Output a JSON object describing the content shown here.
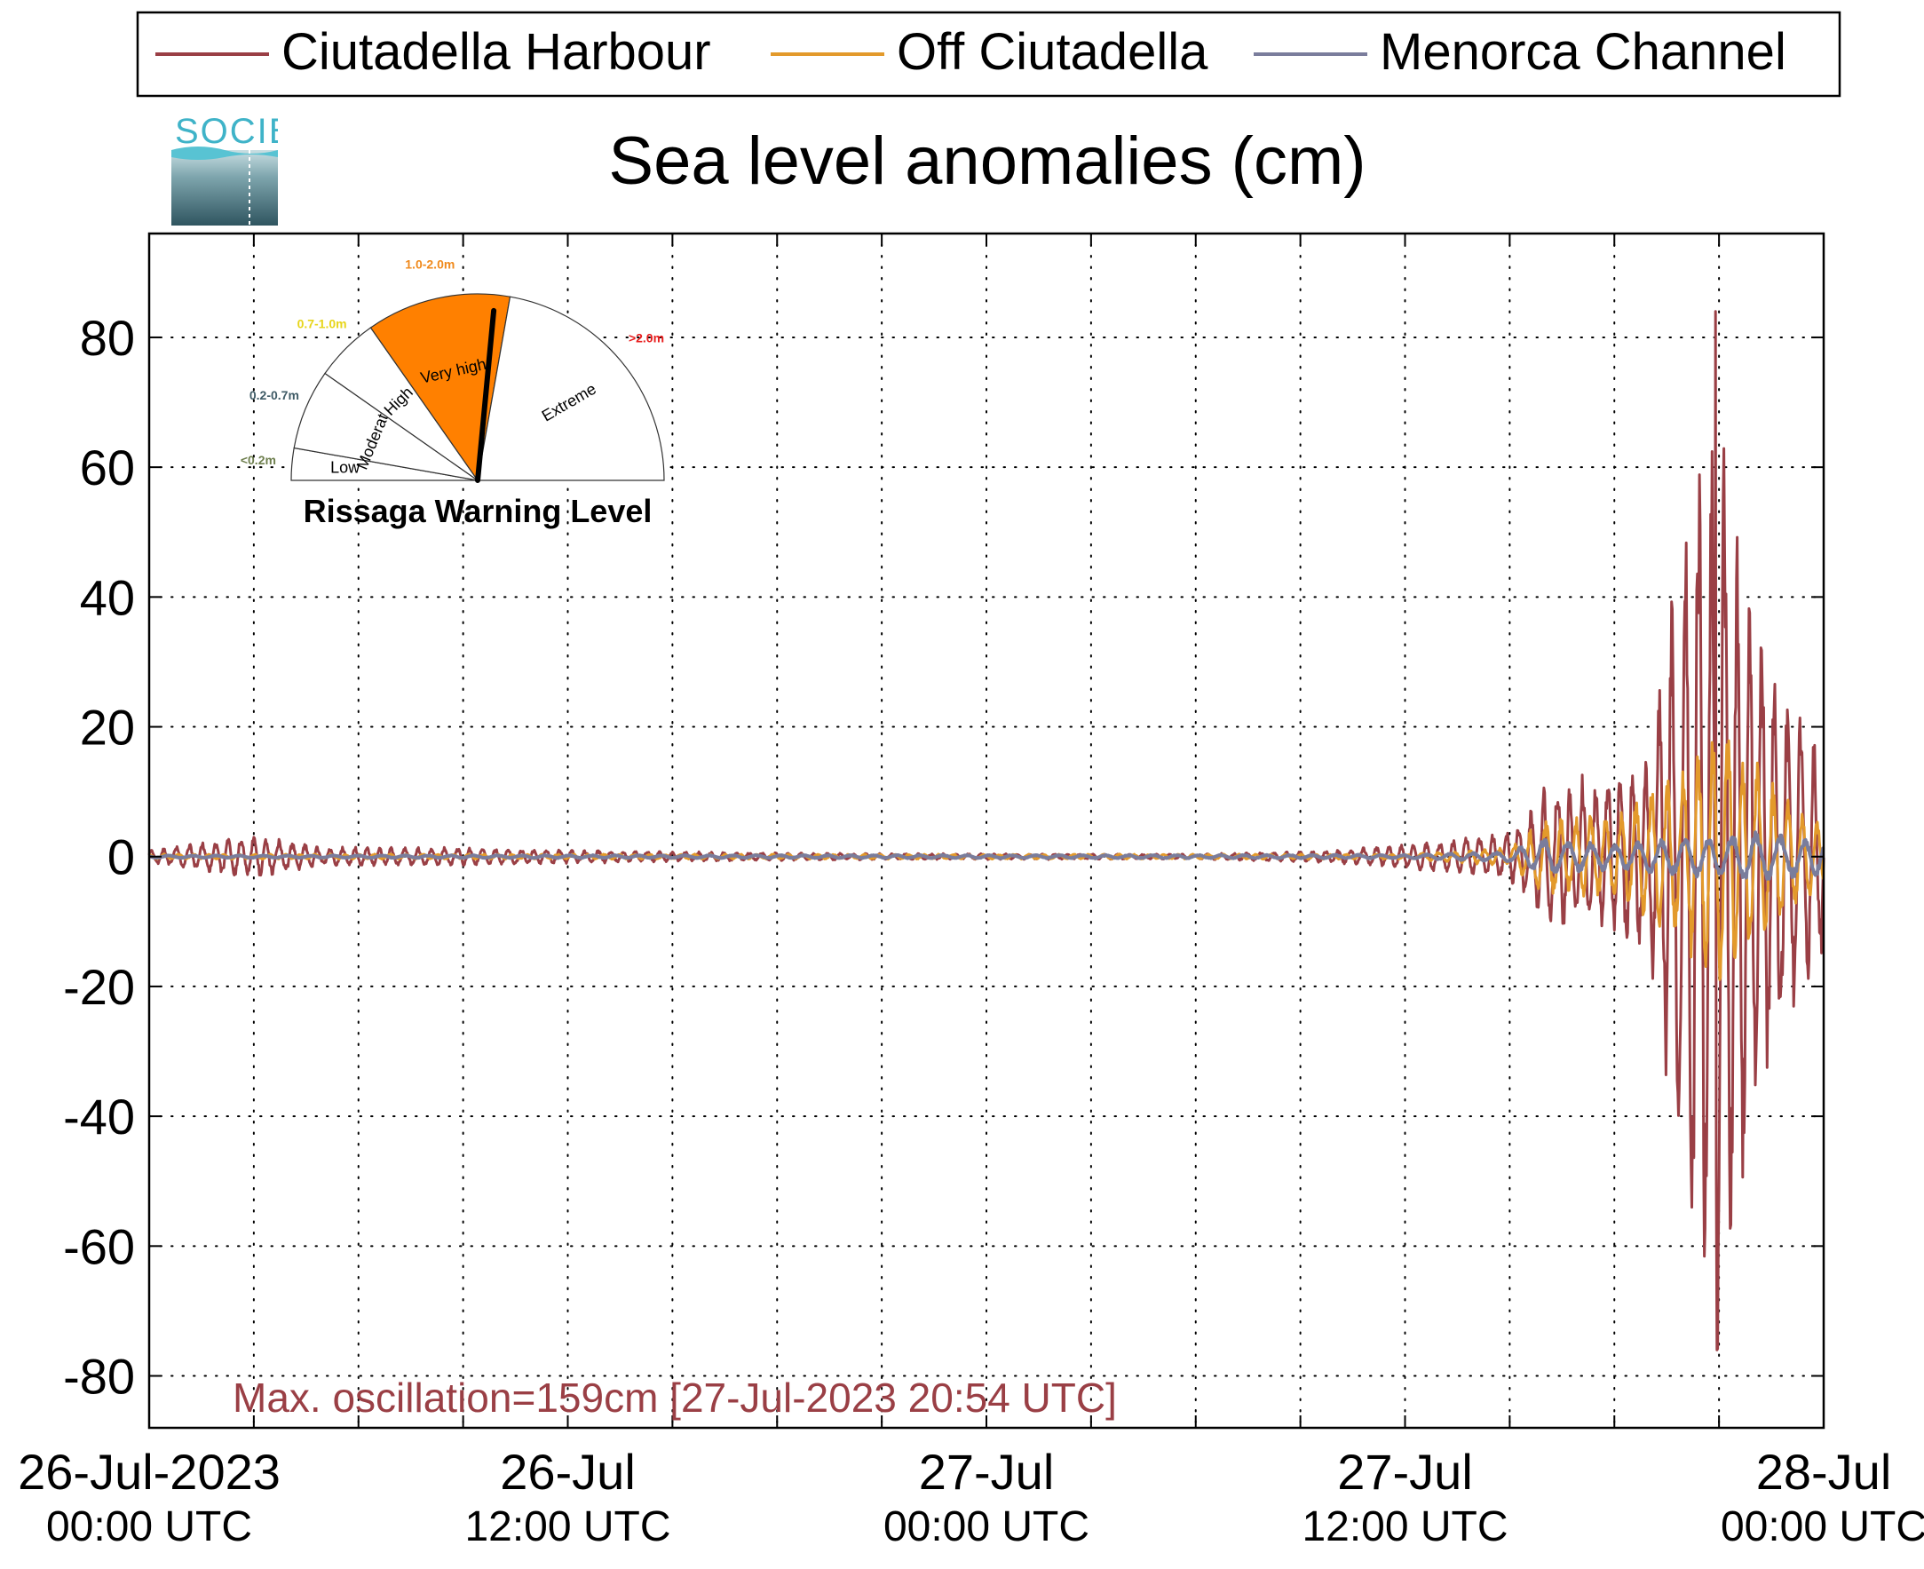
{
  "chart_data": {
    "type": "line",
    "title": "Sea level anomalies (cm)",
    "xlabel": "",
    "ylabel": "",
    "ylim": [
      -88,
      96
    ],
    "x_range": [
      "2023-07-26T00:00Z",
      "2023-07-28T00:00Z"
    ],
    "y_ticks": [
      -80,
      -60,
      -40,
      -20,
      0,
      20,
      40,
      60,
      80
    ],
    "x_ticks": [
      {
        "line1": "26-Jul-2023",
        "line2": "00:00 UTC"
      },
      {
        "line1": "26-Jul",
        "line2": "12:00 UTC"
      },
      {
        "line1": "27-Jul",
        "line2": "00:00 UTC"
      },
      {
        "line1": "27-Jul",
        "line2": "12:00 UTC"
      },
      {
        "line1": "28-Jul",
        "line2": "00:00 UTC"
      }
    ],
    "grid": true,
    "legend_position": "top",
    "series": [
      {
        "name": "Ciutadella Harbour",
        "color": "#9a3f45",
        "amplitude_envelope_cm": [
          [
            "2023-07-26T00:00Z",
            1.0
          ],
          [
            "2023-07-26T03:00Z",
            3.5
          ],
          [
            "2023-07-26T05:00Z",
            1.5
          ],
          [
            "2023-07-26T08:00Z",
            1.5
          ],
          [
            "2023-07-26T15:00Z",
            0.8
          ],
          [
            "2023-07-26T21:00Z",
            0.5
          ],
          [
            "2023-07-27T06:00Z",
            0.4
          ],
          [
            "2023-07-27T10:00Z",
            1.0
          ],
          [
            "2023-07-27T13:00Z",
            2.5
          ],
          [
            "2023-07-27T15:00Z",
            4.0
          ],
          [
            "2023-07-27T16:00Z",
            11.0
          ],
          [
            "2023-07-27T18:00Z",
            14.0
          ],
          [
            "2023-07-27T19:00Z",
            17.0
          ],
          [
            "2023-07-27T20:00Z",
            55.0
          ],
          [
            "2023-07-27T20:54Z",
            80.0
          ],
          [
            "2023-07-27T22:00Z",
            45.0
          ],
          [
            "2023-07-27T23:00Z",
            25.0
          ],
          [
            "2023-07-28T00:00Z",
            17.0
          ]
        ],
        "max_cm": 84,
        "min_cm": -76
      },
      {
        "name": "Off Ciutadella",
        "color": "#e39a2b",
        "amplitude_envelope_cm": [
          [
            "2023-07-26T00:00Z",
            0.4
          ],
          [
            "2023-07-27T12:00Z",
            0.4
          ],
          [
            "2023-07-27T15:00Z",
            1.5
          ],
          [
            "2023-07-27T16:00Z",
            6.0
          ],
          [
            "2023-07-27T18:00Z",
            7.0
          ],
          [
            "2023-07-27T20:00Z",
            14.0
          ],
          [
            "2023-07-27T21:00Z",
            22.0
          ],
          [
            "2023-07-27T23:00Z",
            9.0
          ],
          [
            "2023-07-28T00:00Z",
            6.0
          ]
        ]
      },
      {
        "name": "Menorca Channel",
        "color": "#7a7d9c",
        "amplitude_envelope_cm": [
          [
            "2023-07-26T00:00Z",
            0.2
          ],
          [
            "2023-07-27T12:00Z",
            0.3
          ],
          [
            "2023-07-27T15:00Z",
            0.8
          ],
          [
            "2023-07-27T16:00Z",
            3.0
          ],
          [
            "2023-07-27T18:00Z",
            2.0
          ],
          [
            "2023-07-27T20:00Z",
            3.0
          ],
          [
            "2023-07-27T22:00Z",
            4.0
          ],
          [
            "2023-07-28T00:00Z",
            3.0
          ]
        ]
      }
    ],
    "annotation": "Max. oscillation=159cm [27-Jul-2023 20:54 UTC]"
  },
  "warning_gauge": {
    "title": "Rissaga Warning Level",
    "active_level": "Very high",
    "needle_fraction": 0.53,
    "levels": [
      {
        "label": "Low",
        "range": "<0.2m",
        "range_color": "#6e7f4e"
      },
      {
        "label": "Moderate",
        "range": "0.2-0.7m",
        "range_color": "#3f5b66"
      },
      {
        "label": "High",
        "range": "0.7-1.0m",
        "range_color": "#e7d51a"
      },
      {
        "label": "Very high",
        "range": "1.0-2.0m",
        "range_color": "#f08a1c"
      },
      {
        "label": "Extreme",
        "range": ">2.0m",
        "range_color": "#e81c1c"
      }
    ],
    "active_fill": "#ff8000"
  },
  "logo": {
    "text": "SOCIB"
  }
}
